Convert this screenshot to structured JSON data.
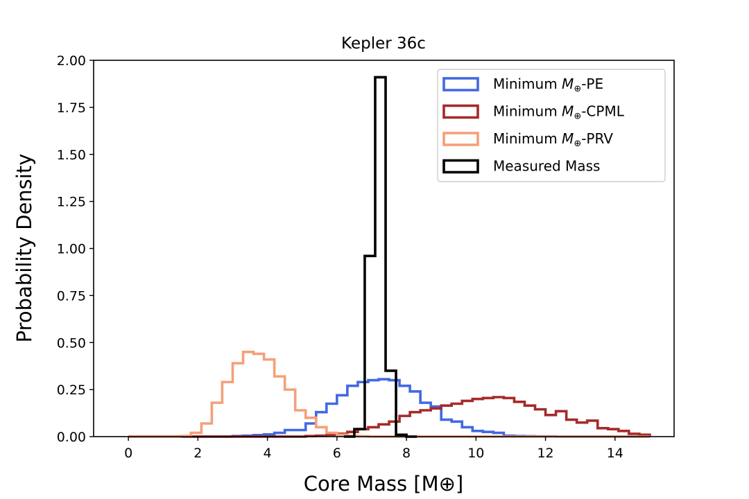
{
  "chart_data": {
    "type": "histogram",
    "title": "Kepler 36c",
    "xlabel": "Core Mass [M⊕]",
    "ylabel": "Probability Density",
    "xlim": [
      -1.0,
      15.7
    ],
    "ylim": [
      0,
      2.0
    ],
    "xticks": [
      "0",
      "2",
      "4",
      "6",
      "8",
      "10",
      "12",
      "14"
    ],
    "xtick_values": [
      0,
      2,
      4,
      6,
      8,
      10,
      12,
      14
    ],
    "yticks": [
      "0.00",
      "0.25",
      "0.50",
      "0.75",
      "1.00",
      "1.25",
      "1.50",
      "1.75",
      "2.00"
    ],
    "ytick_values": [
      0,
      0.25,
      0.5,
      0.75,
      1.0,
      1.25,
      1.5,
      1.75,
      2.0
    ],
    "legend_position": "upper-right",
    "series": [
      {
        "name": "Minimum M⊕-PE",
        "legend_prefix": "Minimum ",
        "legend_math": "M",
        "legend_sub": "⊕",
        "legend_suffix": "-PE",
        "color": "#4169e1",
        "bin_start": 0,
        "bin_width": 0.3,
        "values": [
          0,
          0,
          0,
          0,
          0,
          0,
          0,
          0,
          0,
          0,
          0.003,
          0.005,
          0.008,
          0.012,
          0.02,
          0.035,
          0.035,
          0.07,
          0.13,
          0.175,
          0.22,
          0.27,
          0.29,
          0.3,
          0.305,
          0.3,
          0.27,
          0.24,
          0.18,
          0.16,
          0.09,
          0.08,
          0.05,
          0.03,
          0.025,
          0.02,
          0.005,
          0.003,
          0.002,
          0.001,
          0.001,
          0,
          0,
          0,
          0,
          0,
          0,
          0,
          0,
          0
        ]
      },
      {
        "name": "Minimum M⊕-CPML",
        "legend_prefix": "Minimum ",
        "legend_math": "M",
        "legend_sub": "⊕",
        "legend_suffix": "-CPML",
        "color": "#a52a2a",
        "bin_start": 0,
        "bin_width": 0.3,
        "values": [
          0,
          0,
          0,
          0,
          0,
          0,
          0,
          0,
          0,
          0,
          0,
          0,
          0,
          0,
          0,
          0,
          0,
          0.003,
          0.005,
          0.01,
          0.015,
          0.025,
          0.04,
          0.05,
          0.065,
          0.08,
          0.11,
          0.13,
          0.14,
          0.15,
          0.165,
          0.175,
          0.19,
          0.2,
          0.205,
          0.21,
          0.205,
          0.185,
          0.165,
          0.145,
          0.115,
          0.135,
          0.09,
          0.075,
          0.085,
          0.045,
          0.04,
          0.03,
          0.015,
          0.01
        ]
      },
      {
        "name": "Minimum M⊕-PRV",
        "legend_prefix": "Minimum ",
        "legend_math": "M",
        "legend_sub": "⊕",
        "legend_suffix": "-PRV",
        "color": "#f4a07a",
        "bin_start": 0,
        "bin_width": 0.3,
        "values": [
          0,
          0,
          0,
          0,
          0,
          0.003,
          0.02,
          0.07,
          0.18,
          0.29,
          0.39,
          0.45,
          0.44,
          0.41,
          0.32,
          0.25,
          0.14,
          0.1,
          0.05,
          0.02,
          0.01,
          0.004,
          0.002,
          0,
          0,
          0,
          0,
          0,
          0,
          0,
          0,
          0,
          0,
          0,
          0,
          0,
          0,
          0,
          0,
          0,
          0,
          0,
          0,
          0,
          0,
          0,
          0,
          0,
          0,
          0
        ]
      },
      {
        "name": "Measured Mass",
        "legend_prefix": "Measured Mass",
        "legend_math": "",
        "legend_sub": "",
        "legend_suffix": "",
        "color": "#000000",
        "bin_start": 6.2,
        "bin_width": 0.3,
        "values": [
          0,
          0.04,
          0.96,
          1.91,
          0.35,
          0.01,
          0
        ]
      }
    ]
  }
}
